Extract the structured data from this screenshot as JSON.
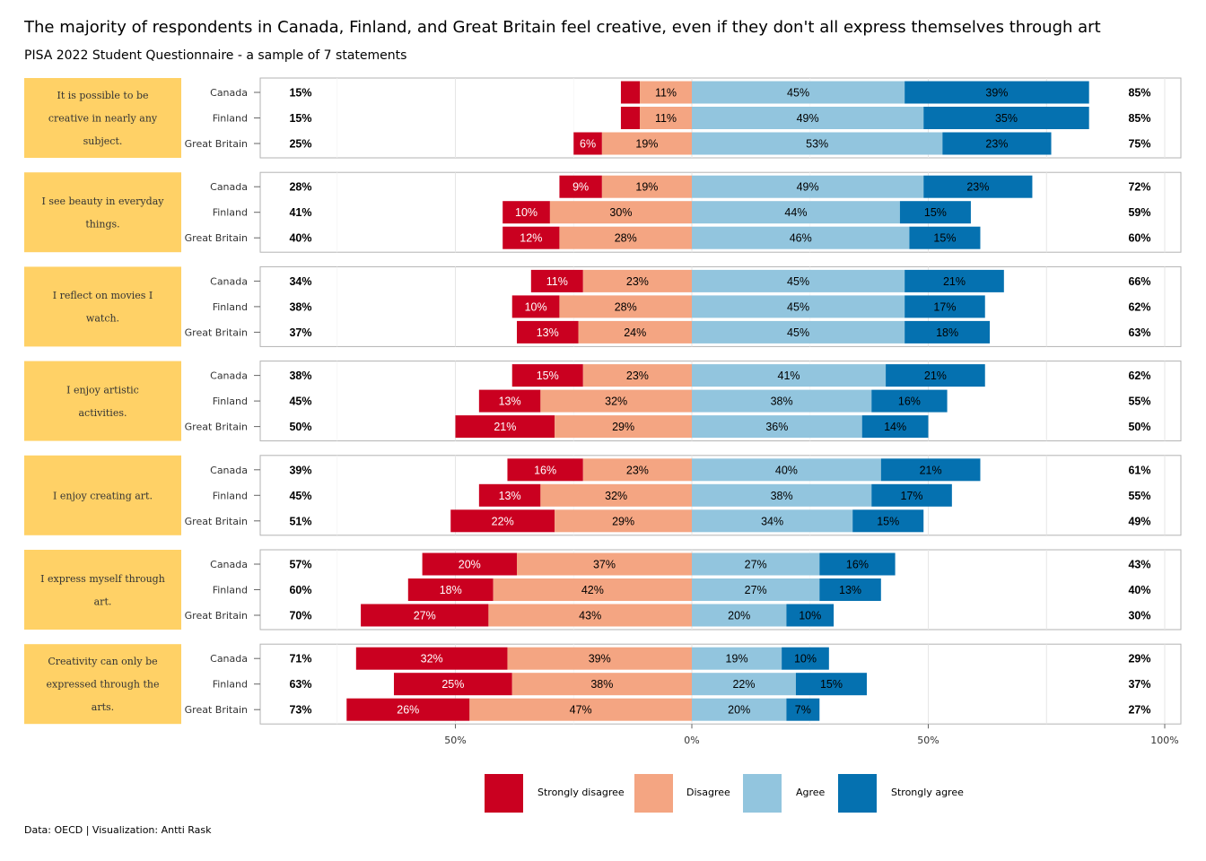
{
  "title": "The majority of respondents in Canada, Finland, and Great Britain feel creative, even if they don't all express themselves through art",
  "subtitle": "PISA 2022 Student Questionnaire - a sample of 7 statements",
  "caption": "Data: OECD | Visualization: Antti Rask",
  "colors": {
    "strongly_disagree": "#ca0020",
    "disagree": "#f4a582",
    "agree": "#92c5de",
    "strongly_agree": "#0571b0",
    "panel_label_bg": "#ffd166",
    "panel_border": "#b3b3b3",
    "grid": "#e6e6e6"
  },
  "legend": [
    {
      "label": "Strongly disagree",
      "color": "#ca0020"
    },
    {
      "label": "Disagree",
      "color": "#f4a582"
    },
    {
      "label": "Agree",
      "color": "#92c5de"
    },
    {
      "label": "Strongly agree",
      "color": "#0571b0"
    }
  ],
  "chart_data": {
    "type": "bar",
    "orientation": "horizontal-diverging",
    "title": "The majority of respondents in Canada, Finland, and Great Britain feel creative, even if they don't all express themselves through art",
    "subtitle": "PISA 2022 Student Questionnaire - a sample of 7 statements",
    "x_ticks": [
      "50%",
      "0%",
      "50%",
      "100%"
    ],
    "x_tick_values": [
      -50,
      0,
      50,
      100
    ],
    "xlim": [
      -90,
      100
    ],
    "grid": true,
    "legend_position": "bottom",
    "series_names": [
      "Strongly disagree",
      "Disagree",
      "Agree",
      "Strongly agree"
    ],
    "panels": [
      {
        "statement": "It is possible to be creative in nearly any subject.",
        "rows": [
          {
            "country": "Canada",
            "strongly_disagree": 4,
            "disagree": 11,
            "agree": 45,
            "strongly_agree": 39,
            "sd_label": "",
            "d_label": "11%",
            "a_label": "45%",
            "sa_label": "39%",
            "disagree_total": "15%",
            "agree_total": "85%"
          },
          {
            "country": "Finland",
            "strongly_disagree": 4,
            "disagree": 11,
            "agree": 49,
            "strongly_agree": 35,
            "sd_label": "",
            "d_label": "11%",
            "a_label": "49%",
            "sa_label": "35%",
            "disagree_total": "15%",
            "agree_total": "85%"
          },
          {
            "country": "Great Britain",
            "strongly_disagree": 6,
            "disagree": 19,
            "agree": 53,
            "strongly_agree": 23,
            "sd_label": "6%",
            "d_label": "19%",
            "a_label": "53%",
            "sa_label": "23%",
            "disagree_total": "25%",
            "agree_total": "75%"
          }
        ]
      },
      {
        "statement": "I see beauty in everyday things.",
        "rows": [
          {
            "country": "Canada",
            "strongly_disagree": 9,
            "disagree": 19,
            "agree": 49,
            "strongly_agree": 23,
            "sd_label": "9%",
            "d_label": "19%",
            "a_label": "49%",
            "sa_label": "23%",
            "disagree_total": "28%",
            "agree_total": "72%"
          },
          {
            "country": "Finland",
            "strongly_disagree": 10,
            "disagree": 30,
            "agree": 44,
            "strongly_agree": 15,
            "sd_label": "10%",
            "d_label": "30%",
            "a_label": "44%",
            "sa_label": "15%",
            "disagree_total": "41%",
            "agree_total": "59%"
          },
          {
            "country": "Great Britain",
            "strongly_disagree": 12,
            "disagree": 28,
            "agree": 46,
            "strongly_agree": 15,
            "sd_label": "12%",
            "d_label": "28%",
            "a_label": "46%",
            "sa_label": "15%",
            "disagree_total": "40%",
            "agree_total": "60%"
          }
        ]
      },
      {
        "statement": "I reflect on movies I watch.",
        "rows": [
          {
            "country": "Canada",
            "strongly_disagree": 11,
            "disagree": 23,
            "agree": 45,
            "strongly_agree": 21,
            "sd_label": "11%",
            "d_label": "23%",
            "a_label": "45%",
            "sa_label": "21%",
            "disagree_total": "34%",
            "agree_total": "66%"
          },
          {
            "country": "Finland",
            "strongly_disagree": 10,
            "disagree": 28,
            "agree": 45,
            "strongly_agree": 17,
            "sd_label": "10%",
            "d_label": "28%",
            "a_label": "45%",
            "sa_label": "17%",
            "disagree_total": "38%",
            "agree_total": "62%"
          },
          {
            "country": "Great Britain",
            "strongly_disagree": 13,
            "disagree": 24,
            "agree": 45,
            "strongly_agree": 18,
            "sd_label": "13%",
            "d_label": "24%",
            "a_label": "45%",
            "sa_label": "18%",
            "disagree_total": "37%",
            "agree_total": "63%"
          }
        ]
      },
      {
        "statement": "I enjoy artistic activities.",
        "rows": [
          {
            "country": "Canada",
            "strongly_disagree": 15,
            "disagree": 23,
            "agree": 41,
            "strongly_agree": 21,
            "sd_label": "15%",
            "d_label": "23%",
            "a_label": "41%",
            "sa_label": "21%",
            "disagree_total": "38%",
            "agree_total": "62%"
          },
          {
            "country": "Finland",
            "strongly_disagree": 13,
            "disagree": 32,
            "agree": 38,
            "strongly_agree": 16,
            "sd_label": "13%",
            "d_label": "32%",
            "a_label": "38%",
            "sa_label": "16%",
            "disagree_total": "45%",
            "agree_total": "55%"
          },
          {
            "country": "Great Britain",
            "strongly_disagree": 21,
            "disagree": 29,
            "agree": 36,
            "strongly_agree": 14,
            "sd_label": "21%",
            "d_label": "29%",
            "a_label": "36%",
            "sa_label": "14%",
            "disagree_total": "50%",
            "agree_total": "50%"
          }
        ]
      },
      {
        "statement": "I enjoy creating art.",
        "rows": [
          {
            "country": "Canada",
            "strongly_disagree": 16,
            "disagree": 23,
            "agree": 40,
            "strongly_agree": 21,
            "sd_label": "16%",
            "d_label": "23%",
            "a_label": "40%",
            "sa_label": "21%",
            "disagree_total": "39%",
            "agree_total": "61%"
          },
          {
            "country": "Finland",
            "strongly_disagree": 13,
            "disagree": 32,
            "agree": 38,
            "strongly_agree": 17,
            "sd_label": "13%",
            "d_label": "32%",
            "a_label": "38%",
            "sa_label": "17%",
            "disagree_total": "45%",
            "agree_total": "55%"
          },
          {
            "country": "Great Britain",
            "strongly_disagree": 22,
            "disagree": 29,
            "agree": 34,
            "strongly_agree": 15,
            "sd_label": "22%",
            "d_label": "29%",
            "a_label": "34%",
            "sa_label": "15%",
            "disagree_total": "51%",
            "agree_total": "49%"
          }
        ]
      },
      {
        "statement": "I express myself through art.",
        "rows": [
          {
            "country": "Canada",
            "strongly_disagree": 20,
            "disagree": 37,
            "agree": 27,
            "strongly_agree": 16,
            "sd_label": "20%",
            "d_label": "37%",
            "a_label": "27%",
            "sa_label": "16%",
            "disagree_total": "57%",
            "agree_total": "43%"
          },
          {
            "country": "Finland",
            "strongly_disagree": 18,
            "disagree": 42,
            "agree": 27,
            "strongly_agree": 13,
            "sd_label": "18%",
            "d_label": "42%",
            "a_label": "27%",
            "sa_label": "13%",
            "disagree_total": "60%",
            "agree_total": "40%"
          },
          {
            "country": "Great Britain",
            "strongly_disagree": 27,
            "disagree": 43,
            "agree": 20,
            "strongly_agree": 10,
            "sd_label": "27%",
            "d_label": "43%",
            "a_label": "20%",
            "sa_label": "10%",
            "disagree_total": "70%",
            "agree_total": "30%"
          }
        ]
      },
      {
        "statement": "Creativity can only be expressed through the arts.",
        "rows": [
          {
            "country": "Canada",
            "strongly_disagree": 32,
            "disagree": 39,
            "agree": 19,
            "strongly_agree": 10,
            "sd_label": "32%",
            "d_label": "39%",
            "a_label": "19%",
            "sa_label": "10%",
            "disagree_total": "71%",
            "agree_total": "29%"
          },
          {
            "country": "Finland",
            "strongly_disagree": 25,
            "disagree": 38,
            "agree": 22,
            "strongly_agree": 15,
            "sd_label": "25%",
            "d_label": "38%",
            "a_label": "22%",
            "sa_label": "15%",
            "disagree_total": "63%",
            "agree_total": "37%"
          },
          {
            "country": "Great Britain",
            "strongly_disagree": 26,
            "disagree": 47,
            "agree": 20,
            "strongly_agree": 7,
            "sd_label": "26%",
            "d_label": "47%",
            "a_label": "20%",
            "sa_label": "7%",
            "disagree_total": "73%",
            "agree_total": "27%"
          }
        ]
      }
    ]
  }
}
